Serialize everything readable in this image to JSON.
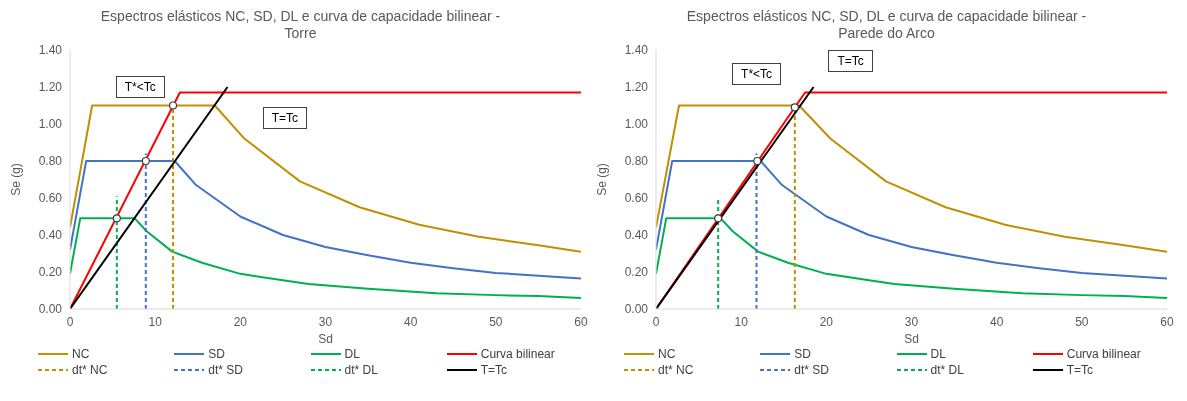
{
  "chart_data": [
    {
      "type": "line",
      "title": "Espectros elásticos NC, SD, DL e curva de capacidade bilinear - Torre",
      "xlabel": "Sd",
      "ylabel": "Se (g)",
      "xlim": [
        0,
        60
      ],
      "xticks": [
        0,
        10,
        20,
        30,
        40,
        50,
        60
      ],
      "ylim": [
        0,
        1.4
      ],
      "yticks": [
        {
          "value": 0,
          "label": "0.00"
        },
        {
          "value": 0.2,
          "label": "0.20"
        },
        {
          "value": 0.4,
          "label": "0.40"
        },
        {
          "value": 0.6,
          "label": "0.60"
        },
        {
          "value": 0.8,
          "label": "0.80"
        },
        {
          "value": 1.0,
          "label": "1.00"
        },
        {
          "value": 1.2,
          "label": "1.20"
        },
        {
          "value": 1.4,
          "label": "1.40"
        }
      ],
      "grid": false,
      "legend": "bottom",
      "marker": "none",
      "annotations": [
        "T*<Tc",
        "T=Tc"
      ],
      "series": [
        {
          "name": "NC",
          "color": "#bf9000",
          "x": [
            0,
            2.6,
            17,
            20.5,
            27,
            34,
            41,
            48,
            55,
            60
          ],
          "values": [
            0.44,
            1.1,
            1.1,
            0.92,
            0.69,
            0.55,
            0.455,
            0.39,
            0.345,
            0.31
          ]
        },
        {
          "name": "SD",
          "color": "#4472c4",
          "x": [
            0,
            1.9,
            12.3,
            14.8,
            20,
            25,
            30,
            35,
            40,
            45,
            50,
            55,
            60
          ],
          "values": [
            0.32,
            0.8,
            0.8,
            0.67,
            0.5,
            0.4,
            0.335,
            0.29,
            0.25,
            0.22,
            0.195,
            0.18,
            0.165
          ]
        },
        {
          "name": "DL",
          "color": "#00b050",
          "x": [
            0,
            1.2,
            7.6,
            9,
            12,
            15.5,
            20,
            25,
            28,
            35,
            43,
            50,
            55,
            60
          ],
          "values": [
            0.19,
            0.49,
            0.49,
            0.42,
            0.31,
            0.25,
            0.19,
            0.155,
            0.135,
            0.11,
            0.085,
            0.075,
            0.07,
            0.06
          ]
        },
        {
          "name": "Curva bilinear",
          "color": "#ff0000",
          "x": [
            0,
            12.9,
            60
          ],
          "values": [
            0,
            1.17,
            1.17
          ]
        },
        {
          "name": "dt* NC",
          "color": "#bf9000",
          "line_style": "dashed",
          "x": [
            12.1,
            12.1
          ],
          "values": [
            0,
            1.1
          ]
        },
        {
          "name": "dt* SD",
          "color": "#4472c4",
          "line_style": "dashed",
          "x": [
            8.9,
            8.9
          ],
          "values": [
            0,
            0.84
          ]
        },
        {
          "name": "dt* DL",
          "color": "#00b050",
          "line_style": "dashed",
          "x": [
            5.5,
            5.5
          ],
          "values": [
            0,
            0.61
          ]
        },
        {
          "name": "T=Tc",
          "color": "#000000",
          "x": [
            0,
            18.5
          ],
          "values": [
            0,
            1.2
          ]
        },
        {
          "type": "scatter",
          "marker": "circle",
          "color": "#404040",
          "x": [
            12.1,
            8.9,
            5.5
          ],
          "values": [
            1.1,
            0.8,
            0.49
          ]
        }
      ]
    },
    {
      "type": "line",
      "title": "Espectros elásticos NC, SD, DL e curva de capacidade bilinear - Parede do Arco",
      "xlabel": "Sd",
      "ylabel": "Se (g)",
      "xlim": [
        0,
        60
      ],
      "xticks": [
        0,
        10,
        20,
        30,
        40,
        50,
        60
      ],
      "ylim": [
        0,
        1.4
      ],
      "yticks": [
        {
          "value": 0,
          "label": "0.00"
        },
        {
          "value": 0.2,
          "label": "0.20"
        },
        {
          "value": 0.4,
          "label": "0.40"
        },
        {
          "value": 0.6,
          "label": "0.60"
        },
        {
          "value": 0.8,
          "label": "0.80"
        },
        {
          "value": 1.0,
          "label": "1.00"
        },
        {
          "value": 1.2,
          "label": "1.20"
        },
        {
          "value": 1.4,
          "label": "1.40"
        }
      ],
      "grid": false,
      "legend": "bottom",
      "marker": "none",
      "annotations": [
        "T*<Tc",
        "T=Tc"
      ],
      "series": [
        {
          "name": "NC",
          "color": "#bf9000",
          "x": [
            0,
            2.7,
            16.8,
            20.5,
            27,
            34,
            41,
            48,
            55,
            60
          ],
          "values": [
            0.44,
            1.1,
            1.1,
            0.92,
            0.69,
            0.55,
            0.455,
            0.39,
            0.345,
            0.31
          ]
        },
        {
          "name": "SD",
          "color": "#4472c4",
          "x": [
            0,
            1.9,
            12.3,
            14.8,
            20,
            25,
            30,
            35,
            40,
            45,
            50,
            55,
            60
          ],
          "values": [
            0.32,
            0.8,
            0.8,
            0.67,
            0.5,
            0.4,
            0.335,
            0.29,
            0.25,
            0.22,
            0.195,
            0.18,
            0.165
          ]
        },
        {
          "name": "DL",
          "color": "#00b050",
          "x": [
            0,
            1.2,
            7.6,
            9,
            12,
            15.5,
            20,
            25,
            28,
            35,
            43,
            50,
            55,
            60
          ],
          "values": [
            0.19,
            0.49,
            0.49,
            0.42,
            0.31,
            0.25,
            0.19,
            0.155,
            0.135,
            0.11,
            0.085,
            0.075,
            0.07,
            0.06
          ]
        },
        {
          "name": "Curva bilinear",
          "color": "#ff0000",
          "x": [
            0,
            17.5,
            60
          ],
          "values": [
            0,
            1.17,
            1.17
          ]
        },
        {
          "name": "dt* NC",
          "color": "#bf9000",
          "line_style": "dashed",
          "x": [
            16.3,
            16.3
          ],
          "values": [
            0,
            1.1
          ]
        },
        {
          "name": "dt* SD",
          "color": "#4472c4",
          "line_style": "dashed",
          "x": [
            11.8,
            11.8
          ],
          "values": [
            0,
            0.84
          ]
        },
        {
          "name": "dt* DL",
          "color": "#00b050",
          "line_style": "dashed",
          "x": [
            7.3,
            7.3
          ],
          "values": [
            0,
            0.6
          ]
        },
        {
          "name": "T=Tc",
          "color": "#000000",
          "x": [
            0,
            18.5
          ],
          "values": [
            0,
            1.2
          ]
        },
        {
          "type": "scatter",
          "marker": "circle",
          "color": "#404040",
          "x": [
            16.3,
            11.9,
            7.3
          ],
          "values": [
            1.09,
            0.8,
            0.49
          ]
        }
      ]
    }
  ]
}
